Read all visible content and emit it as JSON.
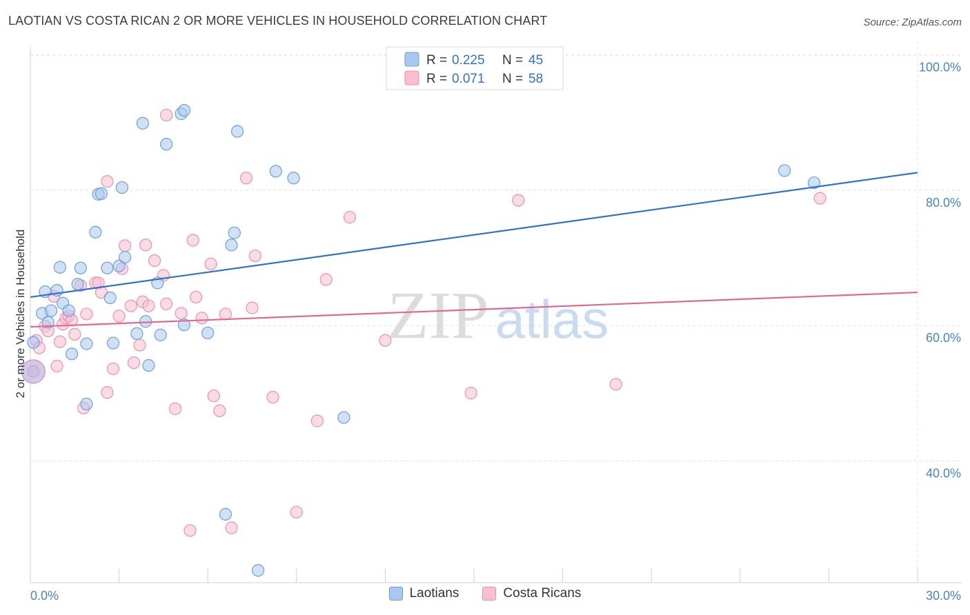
{
  "header": {
    "title": "LAOTIAN VS COSTA RICAN 2 OR MORE VEHICLES IN HOUSEHOLD CORRELATION CHART",
    "source": "Source: ZipAtlas.com"
  },
  "watermark": {
    "zip": "ZIP",
    "atlas": "atlas"
  },
  "legend": {
    "rows": [
      {
        "r_label": "R = ",
        "r_value": "0.225",
        "n_label": "N = ",
        "n_value": "45"
      },
      {
        "r_label": "R = ",
        "r_value": "0.071",
        "n_label": "N = ",
        "n_value": "58"
      }
    ]
  },
  "colors": {
    "series1_fill": "#a9c8ef",
    "series1_stroke": "#6a9fdf",
    "series1_line": "#2f72c8",
    "series2_fill": "#f7bfd0",
    "series2_stroke": "#ec8fae",
    "series2_line": "#e26892",
    "axis_label": "#4a82c9",
    "grid": "#e3e3e3"
  },
  "chart_data": {
    "type": "scatter",
    "title": "LAOTIAN VS COSTA RICAN 2 OR MORE VEHICLES IN HOUSEHOLD CORRELATION CHART",
    "xlabel": "",
    "ylabel": "2 or more Vehicles in Household",
    "xlim": [
      0,
      30
    ],
    "ylim": [
      22,
      102
    ],
    "y_ticks": [
      40,
      60,
      80,
      100
    ],
    "y_tick_labels": [
      "40.0%",
      "60.0%",
      "80.0%",
      "100.0%"
    ],
    "x_tick_labels": [
      "0.0%",
      "30.0%"
    ],
    "x_minor_ticks": [
      0,
      3,
      6,
      9,
      12,
      15,
      18,
      21,
      24,
      27,
      30
    ],
    "grid": true,
    "legend_position": "top-center",
    "series": [
      {
        "name": "Laotians",
        "r": 0.225,
        "n": 45,
        "trend": {
          "x": [
            0,
            30
          ],
          "y": [
            64.2,
            82.6
          ]
        },
        "points": [
          [
            0.1,
            57.5
          ],
          [
            0.1,
            53.2
          ],
          [
            0.4,
            61.8
          ],
          [
            0.5,
            65.0
          ],
          [
            0.6,
            60.5
          ],
          [
            0.7,
            62.2
          ],
          [
            0.9,
            65.2
          ],
          [
            1.0,
            68.6
          ],
          [
            1.1,
            63.3
          ],
          [
            1.3,
            62.2
          ],
          [
            1.4,
            55.8
          ],
          [
            1.6,
            66.1
          ],
          [
            1.7,
            68.5
          ],
          [
            1.9,
            48.4
          ],
          [
            1.9,
            57.3
          ],
          [
            2.2,
            73.8
          ],
          [
            2.3,
            79.4
          ],
          [
            2.4,
            79.5
          ],
          [
            2.6,
            68.5
          ],
          [
            2.7,
            64.1
          ],
          [
            2.8,
            57.4
          ],
          [
            3.0,
            68.8
          ],
          [
            3.1,
            80.4
          ],
          [
            3.2,
            70.1
          ],
          [
            3.6,
            58.8
          ],
          [
            3.8,
            89.9
          ],
          [
            3.9,
            60.6
          ],
          [
            4.0,
            54.1
          ],
          [
            4.3,
            66.3
          ],
          [
            4.4,
            58.6
          ],
          [
            4.6,
            86.8
          ],
          [
            5.1,
            91.3
          ],
          [
            5.2,
            91.8
          ],
          [
            5.2,
            60.1
          ],
          [
            6.0,
            58.9
          ],
          [
            6.6,
            32.1
          ],
          [
            6.8,
            71.9
          ],
          [
            6.9,
            73.7
          ],
          [
            7.0,
            88.7
          ],
          [
            7.7,
            23.8
          ],
          [
            8.3,
            82.8
          ],
          [
            8.9,
            81.8
          ],
          [
            10.6,
            46.4
          ],
          [
            25.5,
            82.9
          ],
          [
            26.5,
            81.1
          ]
        ]
      },
      {
        "name": "Costa Ricans",
        "r": 0.071,
        "n": 58,
        "trend": {
          "x": [
            0,
            30
          ],
          "y": [
            59.8,
            64.9
          ]
        },
        "points": [
          [
            0.2,
            57.8
          ],
          [
            0.3,
            56.7
          ],
          [
            0.5,
            59.9
          ],
          [
            0.6,
            59.2
          ],
          [
            0.8,
            64.3
          ],
          [
            0.9,
            54.0
          ],
          [
            1.0,
            57.6
          ],
          [
            1.1,
            60.2
          ],
          [
            1.2,
            61.1
          ],
          [
            1.3,
            61.4
          ],
          [
            1.4,
            60.8
          ],
          [
            1.5,
            58.7
          ],
          [
            1.7,
            65.9
          ],
          [
            1.8,
            47.8
          ],
          [
            1.9,
            61.7
          ],
          [
            2.2,
            66.3
          ],
          [
            2.3,
            66.3
          ],
          [
            2.4,
            64.9
          ],
          [
            2.6,
            81.3
          ],
          [
            2.6,
            50.1
          ],
          [
            2.8,
            53.6
          ],
          [
            3.0,
            61.4
          ],
          [
            3.1,
            68.4
          ],
          [
            3.2,
            71.8
          ],
          [
            3.4,
            62.9
          ],
          [
            3.5,
            54.5
          ],
          [
            3.7,
            57.1
          ],
          [
            3.8,
            63.5
          ],
          [
            3.9,
            71.9
          ],
          [
            4.0,
            62.9
          ],
          [
            4.2,
            69.6
          ],
          [
            4.5,
            67.4
          ],
          [
            4.6,
            63.2
          ],
          [
            4.6,
            91.1
          ],
          [
            4.9,
            47.7
          ],
          [
            5.1,
            61.8
          ],
          [
            5.4,
            29.7
          ],
          [
            5.5,
            72.6
          ],
          [
            5.6,
            64.2
          ],
          [
            5.8,
            61.1
          ],
          [
            6.1,
            69.1
          ],
          [
            6.2,
            49.6
          ],
          [
            6.4,
            47.4
          ],
          [
            6.6,
            61.7
          ],
          [
            6.8,
            30.1
          ],
          [
            7.3,
            81.8
          ],
          [
            7.5,
            62.6
          ],
          [
            7.6,
            70.3
          ],
          [
            8.2,
            49.4
          ],
          [
            9.0,
            32.4
          ],
          [
            9.7,
            45.9
          ],
          [
            10.0,
            66.8
          ],
          [
            10.8,
            76.0
          ],
          [
            12.0,
            57.8
          ],
          [
            14.9,
            50.0
          ],
          [
            16.5,
            78.5
          ],
          [
            19.8,
            51.3
          ],
          [
            26.7,
            78.8
          ]
        ]
      }
    ]
  },
  "bottom_legend": {
    "series1_label": "Laotians",
    "series2_label": "Costa Ricans"
  }
}
